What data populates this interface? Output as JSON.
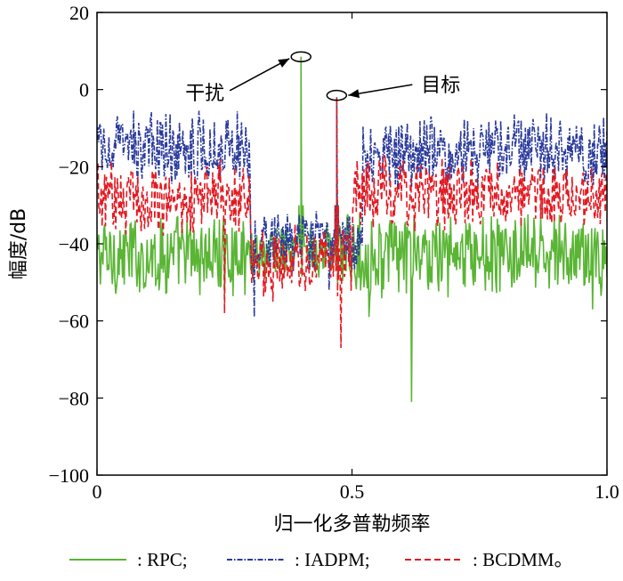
{
  "chart_data": {
    "type": "line",
    "title": "",
    "xlabel": "归一化多普勒频率",
    "ylabel": "幅度/dB",
    "xlim": [
      0,
      1.0
    ],
    "ylim": [
      -100,
      20
    ],
    "x_ticks": [
      0,
      0.5,
      1.0
    ],
    "x_tick_labels": [
      "0",
      "0.5",
      "1.0"
    ],
    "y_ticks": [
      20,
      0,
      -20,
      -40,
      -60,
      -80,
      -100
    ],
    "y_tick_labels": [
      "20",
      "0",
      "−20",
      "−40",
      "−60",
      "−80",
      "−100"
    ],
    "grid": false,
    "legend_position": "bottom",
    "legend": [
      {
        "key": "rpc",
        "label": ": RPC;",
        "color": "#5ab535",
        "dash": "solid"
      },
      {
        "key": "iadpm",
        "label": ": IADPM;",
        "color": "#2a3a9c",
        "dash": "dashdot"
      },
      {
        "key": "bcdmm",
        "label": ": BCDMM。",
        "color": "#e31a22",
        "dash": "dashed"
      }
    ],
    "annotations": [
      {
        "text": "干扰",
        "x": 0.4,
        "y": 8.5,
        "label_side": "left",
        "description": "interference peak"
      },
      {
        "text": "目标",
        "x": 0.47,
        "y": -1.5,
        "label_side": "right",
        "description": "target peak"
      }
    ],
    "series": [
      {
        "name": "RPC",
        "color": "#5ab535",
        "dash": "solid",
        "profile": [
          {
            "from": 0.0,
            "to": 0.3,
            "level": -43,
            "spread": 9
          },
          {
            "from": 0.3,
            "to": 0.47,
            "level": -42,
            "spread": 7
          },
          {
            "from": 0.47,
            "to": 1.0,
            "level": -43,
            "spread": 9
          }
        ],
        "peaks": [
          {
            "x": 0.4,
            "y": 8.5,
            "width": 0.004
          },
          {
            "x": 0.47,
            "y": -3,
            "width": 0.003
          }
        ],
        "dips": [
          {
            "x": 0.616,
            "y": -81
          },
          {
            "x": 0.534,
            "y": -59
          },
          {
            "x": 0.972,
            "y": -57
          }
        ]
      },
      {
        "name": "IADPM",
        "color": "#2a3a9c",
        "dash": "dashdot",
        "profile": [
          {
            "from": 0.0,
            "to": 0.3,
            "level": -15,
            "spread": 8
          },
          {
            "from": 0.3,
            "to": 0.52,
            "level": -40,
            "spread": 7
          },
          {
            "from": 0.52,
            "to": 1.0,
            "level": -16,
            "spread": 8
          }
        ],
        "peaks": [
          {
            "x": 0.47,
            "y": -2,
            "width": 0.003
          }
        ],
        "dips": [
          {
            "x": 0.308,
            "y": -59
          },
          {
            "x": 0.455,
            "y": -52
          }
        ]
      },
      {
        "name": "BCDMM",
        "color": "#e31a22",
        "dash": "dashed",
        "profile": [
          {
            "from": 0.0,
            "to": 0.3,
            "level": -28,
            "spread": 8
          },
          {
            "from": 0.3,
            "to": 0.5,
            "level": -44,
            "spread": 8
          },
          {
            "from": 0.5,
            "to": 1.0,
            "level": -27,
            "spread": 8
          }
        ],
        "peaks": [
          {
            "x": 0.47,
            "y": -2,
            "width": 0.003
          }
        ],
        "dips": [
          {
            "x": 0.478,
            "y": -67
          },
          {
            "x": 0.25,
            "y": -58
          },
          {
            "x": 0.345,
            "y": -55
          }
        ]
      }
    ]
  }
}
